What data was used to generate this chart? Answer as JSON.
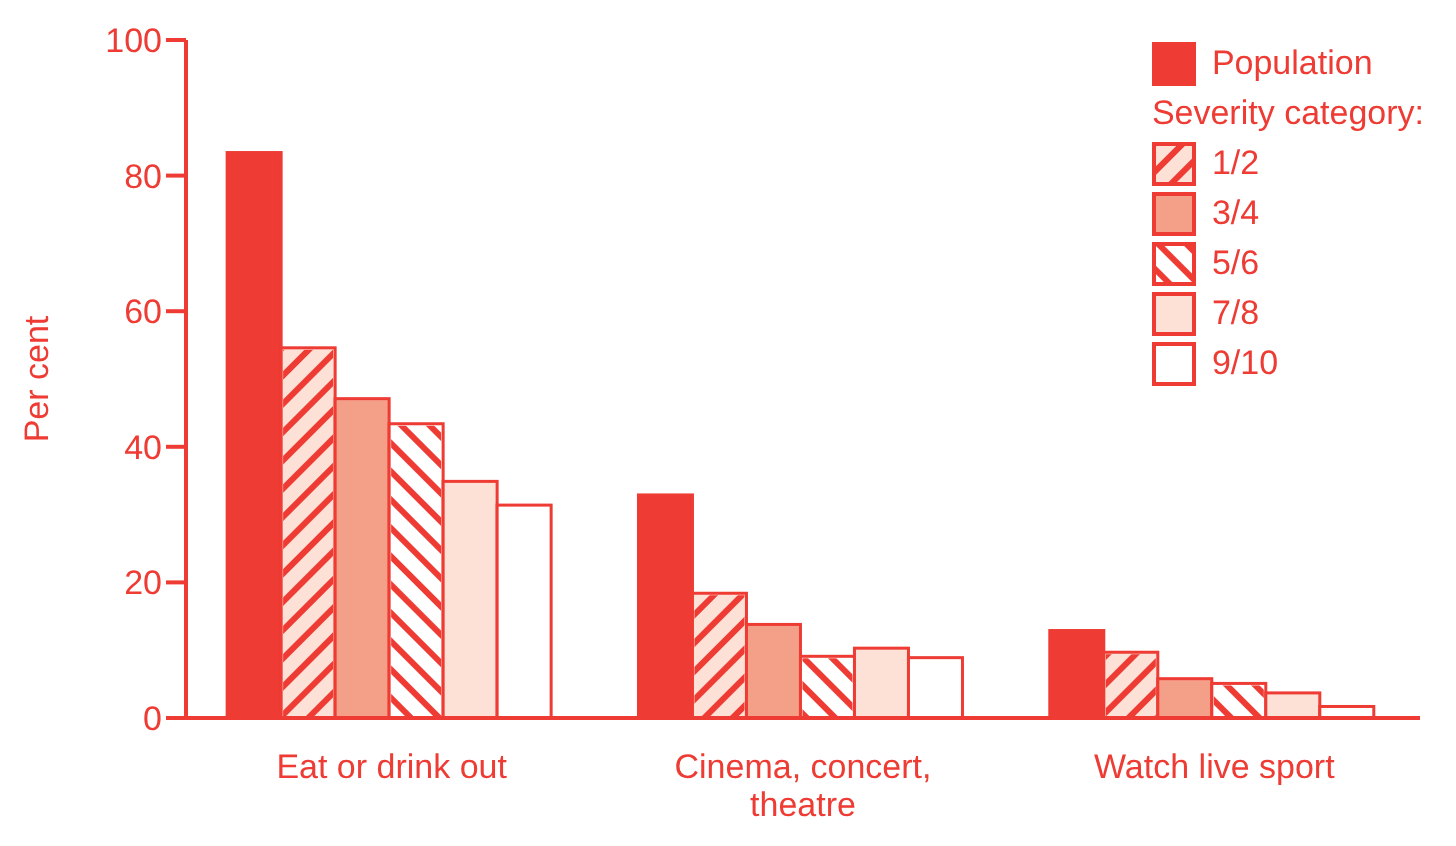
{
  "chart_data": {
    "type": "bar",
    "ylabel": "Per cent",
    "categories": [
      "Eat or drink out",
      "Cinema, concert, theatre",
      "Watch live sport"
    ],
    "series": [
      {
        "name": "Population",
        "color": "#ee3b33",
        "values": [
          83.4,
          32.9,
          12.9
        ]
      },
      {
        "name": "1/2",
        "color": "#fde0d6",
        "values": [
          54.6,
          18.4,
          9.7
        ]
      },
      {
        "name": "3/4",
        "color": "#f4a088",
        "values": [
          47.1,
          13.8,
          5.8
        ]
      },
      {
        "name": "5/6",
        "color": "#ffffff",
        "values": [
          43.4,
          9.1,
          5.1
        ]
      },
      {
        "name": "7/8",
        "color": "#fde0d6",
        "values": [
          34.9,
          10.3,
          3.7
        ]
      },
      {
        "name": "9/10",
        "color": "#ffffff",
        "values": [
          31.4,
          8.9,
          1.7
        ]
      }
    ],
    "legend_title": "Severity category:",
    "legend": "top right",
    "ylim": [
      0,
      100
    ],
    "yticks": [
      0,
      20,
      40,
      60,
      80,
      100
    ]
  }
}
